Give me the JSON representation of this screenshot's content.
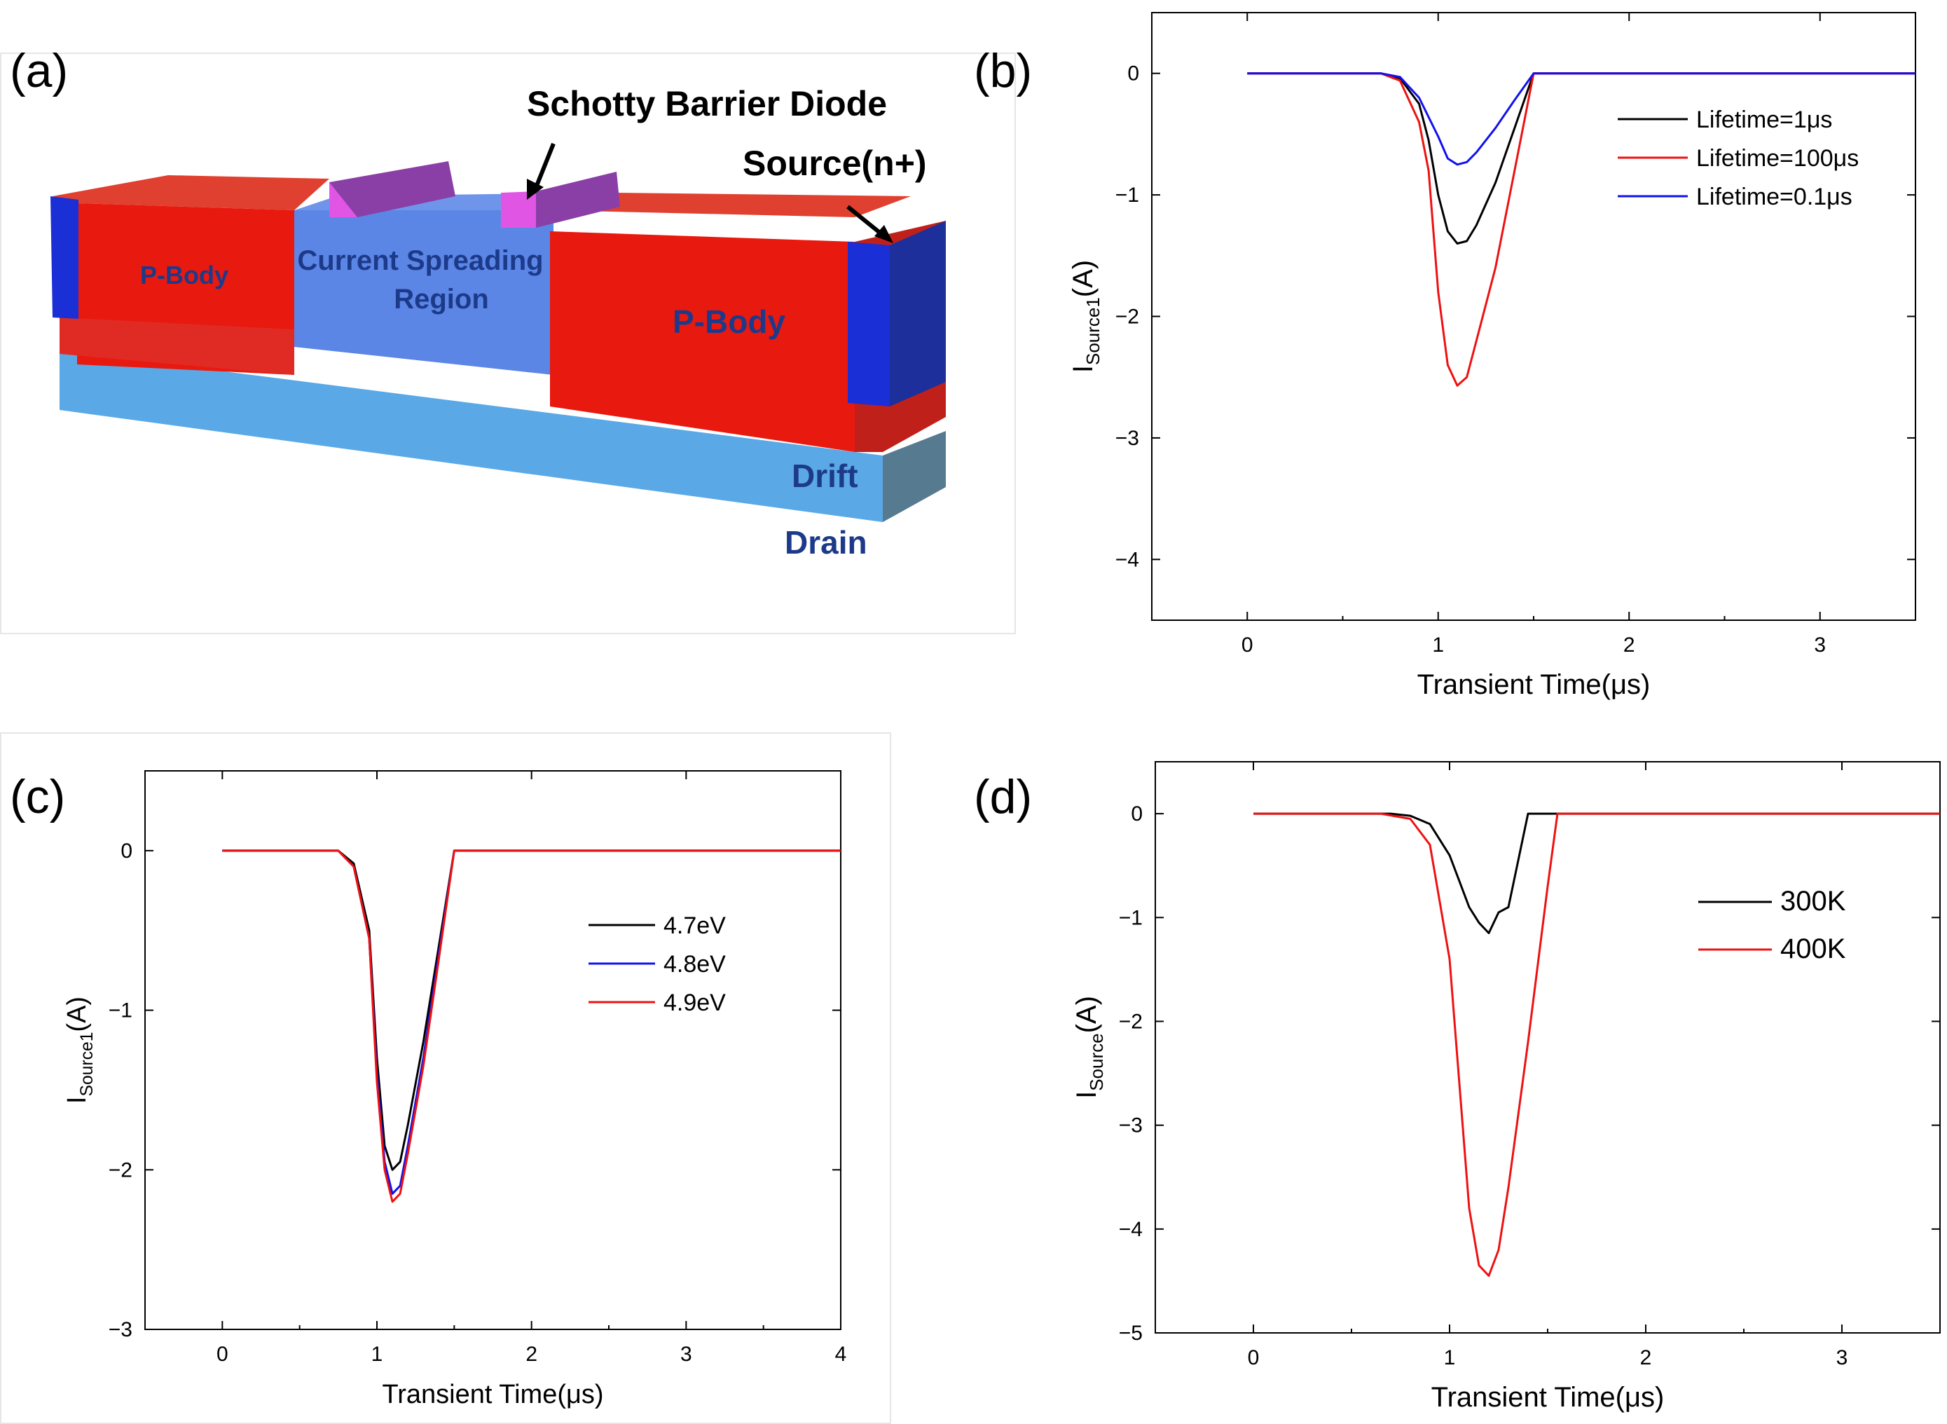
{
  "panels": {
    "a": {
      "letter": "(a)",
      "labels": {
        "sbd": "Schotty Barrier Diode",
        "source": "Source(n+)",
        "pbody_left": "P-Body",
        "csr_line1": "Current Spreading",
        "csr_line2": "Region",
        "pbody_right": "P-Body",
        "drift": "Drift",
        "drain": "Drain"
      },
      "colors": {
        "pbody": "#e8190f",
        "source": "#1a2fd6",
        "csr": "#5b86e6",
        "drift": "#5aa9e6",
        "contact": "#e055e3",
        "drain_side": "#567a8f"
      }
    },
    "b": {
      "letter": "(b)"
    },
    "c": {
      "letter": "(c)"
    },
    "d": {
      "letter": "(d)"
    }
  },
  "chart_data": [
    {
      "id": "b",
      "type": "line",
      "xlabel": "Transient Time(μs)",
      "ylabel_main": "I",
      "ylabel_sub": "Source1",
      "ylabel_unit": "(A)",
      "xlim": [
        -0.5,
        3.5
      ],
      "ylim": [
        -4.5,
        0.5
      ],
      "xticks": [
        0,
        1,
        2,
        3
      ],
      "yticks": [
        0,
        -1,
        -2,
        -3,
        -4
      ],
      "ytick_labels": [
        "0",
        "−1",
        "−2",
        "−3",
        "−4"
      ],
      "legend_position": "top-right",
      "series": [
        {
          "name": "Lifetime=1μs",
          "color": "#000000",
          "x": [
            0,
            0.7,
            0.8,
            0.9,
            0.95,
            1.0,
            1.05,
            1.1,
            1.15,
            1.2,
            1.3,
            1.4,
            1.5,
            3.5
          ],
          "y": [
            0,
            0,
            -0.04,
            -0.25,
            -0.55,
            -1.0,
            -1.3,
            -1.4,
            -1.38,
            -1.25,
            -0.9,
            -0.45,
            0,
            0
          ]
        },
        {
          "name": "Lifetime=100μs",
          "color": "#ee1111",
          "x": [
            0,
            0.7,
            0.8,
            0.9,
            0.95,
            1.0,
            1.05,
            1.1,
            1.15,
            1.2,
            1.3,
            1.4,
            1.5,
            3.5
          ],
          "y": [
            0,
            0,
            -0.06,
            -0.4,
            -0.8,
            -1.8,
            -2.4,
            -2.57,
            -2.5,
            -2.2,
            -1.6,
            -0.8,
            0,
            0
          ]
        },
        {
          "name": "Lifetime=0.1μs",
          "color": "#1111ee",
          "x": [
            0,
            0.7,
            0.8,
            0.9,
            1.0,
            1.05,
            1.1,
            1.15,
            1.2,
            1.3,
            1.4,
            1.5,
            3.5
          ],
          "y": [
            0,
            0,
            -0.03,
            -0.2,
            -0.52,
            -0.7,
            -0.75,
            -0.73,
            -0.65,
            -0.45,
            -0.22,
            0,
            0
          ]
        }
      ]
    },
    {
      "id": "c",
      "type": "line",
      "xlabel": "Transient Time(μs)",
      "ylabel_main": "I",
      "ylabel_sub": "Source1",
      "ylabel_unit": "(A)",
      "xlim": [
        -0.5,
        4
      ],
      "ylim": [
        -3,
        0.5
      ],
      "xticks": [
        0,
        1,
        2,
        3,
        4
      ],
      "yticks": [
        0,
        -1,
        -2,
        -3
      ],
      "ytick_labels": [
        "0",
        "−1",
        "−2",
        "−3"
      ],
      "legend_position": "top-right",
      "series": [
        {
          "name": "4.7eV",
          "color": "#000000",
          "x": [
            0,
            0.75,
            0.85,
            0.95,
            1.0,
            1.05,
            1.1,
            1.15,
            1.2,
            1.3,
            1.4,
            1.5,
            4
          ],
          "y": [
            0,
            0,
            -0.08,
            -0.5,
            -1.3,
            -1.85,
            -2.0,
            -1.95,
            -1.72,
            -1.2,
            -0.6,
            0,
            0
          ]
        },
        {
          "name": "4.8eV",
          "color": "#1111ee",
          "x": [
            0,
            0.75,
            0.85,
            0.95,
            1.0,
            1.05,
            1.1,
            1.15,
            1.2,
            1.3,
            1.4,
            1.5,
            4
          ],
          "y": [
            0,
            0,
            -0.1,
            -0.55,
            -1.4,
            -1.95,
            -2.15,
            -2.1,
            -1.85,
            -1.3,
            -0.65,
            0,
            0
          ]
        },
        {
          "name": "4.9eV",
          "color": "#ee1111",
          "x": [
            0,
            0.75,
            0.85,
            0.95,
            1.0,
            1.05,
            1.1,
            1.15,
            1.2,
            1.3,
            1.4,
            1.5,
            4
          ],
          "y": [
            0,
            0,
            -0.1,
            -0.55,
            -1.45,
            -2.0,
            -2.2,
            -2.15,
            -1.9,
            -1.35,
            -0.68,
            0,
            0
          ]
        }
      ]
    },
    {
      "id": "d",
      "type": "line",
      "xlabel": "Transient Time(μs)",
      "ylabel_main": "I",
      "ylabel_sub": "Source",
      "ylabel_unit": "(A)",
      "xlim": [
        -0.5,
        3.5
      ],
      "ylim": [
        -5,
        0.5
      ],
      "xticks": [
        0,
        1,
        2,
        3
      ],
      "yticks": [
        0,
        -1,
        -2,
        -3,
        -4,
        -5
      ],
      "ytick_labels": [
        "0",
        "−1",
        "−2",
        "−3",
        "−4",
        "−5"
      ],
      "legend_position": "top-right",
      "series": [
        {
          "name": "300K",
          "color": "#000000",
          "x": [
            0,
            0.7,
            0.8,
            0.9,
            1.0,
            1.05,
            1.1,
            1.15,
            1.2,
            1.25,
            1.3,
            1.35,
            1.4,
            3.5
          ],
          "y": [
            0,
            0,
            -0.02,
            -0.1,
            -0.4,
            -0.65,
            -0.9,
            -1.05,
            -1.15,
            -0.95,
            -0.9,
            -0.45,
            0,
            0
          ]
        },
        {
          "name": "400K",
          "color": "#ee1111",
          "x": [
            0,
            0.65,
            0.8,
            0.9,
            1.0,
            1.05,
            1.1,
            1.15,
            1.2,
            1.25,
            1.3,
            1.4,
            1.5,
            1.55,
            3.5
          ],
          "y": [
            0,
            0,
            -0.05,
            -0.3,
            -1.4,
            -2.6,
            -3.8,
            -4.35,
            -4.45,
            -4.2,
            -3.6,
            -2.2,
            -0.7,
            0,
            0
          ]
        }
      ]
    }
  ]
}
